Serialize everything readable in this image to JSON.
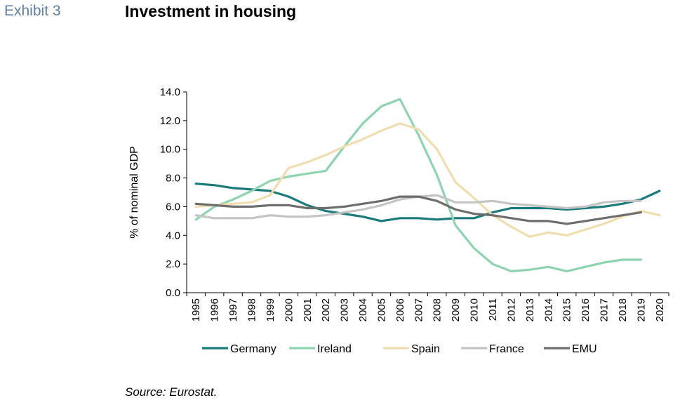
{
  "header": {
    "exhibit": "Exhibit 3",
    "title": "Investment in housing"
  },
  "footer": {
    "source": "Source: Eurostat."
  },
  "chart_data": {
    "type": "line",
    "title": "Investment in housing",
    "xlabel": "",
    "ylabel": "% of nominal GDP",
    "ylim": [
      0,
      14
    ],
    "yticks": [
      "0.0",
      "2.0",
      "4.0",
      "6.0",
      "8.0",
      "10.0",
      "12.0",
      "14.0"
    ],
    "grid": false,
    "legend_position": "bottom",
    "categories": [
      "1995",
      "1996",
      "1997",
      "1998",
      "1999",
      "2000",
      "2001",
      "2002",
      "2003",
      "2004",
      "2005",
      "2006",
      "2007",
      "2008",
      "2009",
      "2010",
      "2011",
      "2012",
      "2013",
      "2014",
      "2015",
      "2016",
      "2017",
      "2018",
      "2019",
      "2020"
    ],
    "series": [
      {
        "name": "Germany",
        "color": "#1b7a7a",
        "values": [
          7.6,
          7.5,
          7.3,
          7.2,
          7.1,
          6.7,
          6.1,
          5.7,
          5.5,
          5.3,
          5.0,
          5.2,
          5.2,
          5.1,
          5.2,
          5.2,
          5.6,
          5.9,
          5.9,
          5.9,
          5.8,
          5.9,
          6.0,
          6.2,
          6.5,
          7.1
        ]
      },
      {
        "name": "Ireland",
        "color": "#8fd4b0",
        "values": [
          5.1,
          6.0,
          6.5,
          7.1,
          7.8,
          8.1,
          8.3,
          8.5,
          10.2,
          11.8,
          13.0,
          13.5,
          11.0,
          8.2,
          4.7,
          3.1,
          2.0,
          1.5,
          1.6,
          1.8,
          1.5,
          1.8,
          2.1,
          2.3,
          2.3,
          null
        ]
      },
      {
        "name": "Spain",
        "color": "#f0deb0",
        "values": [
          6.0,
          6.1,
          6.2,
          6.3,
          6.8,
          8.7,
          9.1,
          9.6,
          10.2,
          10.7,
          11.3,
          11.8,
          11.4,
          10.0,
          7.7,
          6.6,
          5.4,
          4.6,
          3.9,
          4.2,
          4.0,
          4.4,
          4.8,
          5.3,
          5.7,
          5.4
        ]
      },
      {
        "name": "France",
        "color": "#c4c4c4",
        "values": [
          5.4,
          5.2,
          5.2,
          5.2,
          5.4,
          5.3,
          5.3,
          5.4,
          5.6,
          5.8,
          6.1,
          6.5,
          6.7,
          6.8,
          6.3,
          6.3,
          6.4,
          6.2,
          6.1,
          6.0,
          5.9,
          6.0,
          6.3,
          6.4,
          6.4,
          null
        ]
      },
      {
        "name": "EMU",
        "color": "#6e6e6e",
        "values": [
          6.2,
          6.1,
          6.0,
          6.0,
          6.1,
          6.1,
          5.9,
          5.9,
          6.0,
          6.2,
          6.4,
          6.7,
          6.7,
          6.4,
          5.8,
          5.5,
          5.4,
          5.2,
          5.0,
          5.0,
          4.8,
          5.0,
          5.2,
          5.4,
          5.6,
          null
        ]
      }
    ]
  }
}
